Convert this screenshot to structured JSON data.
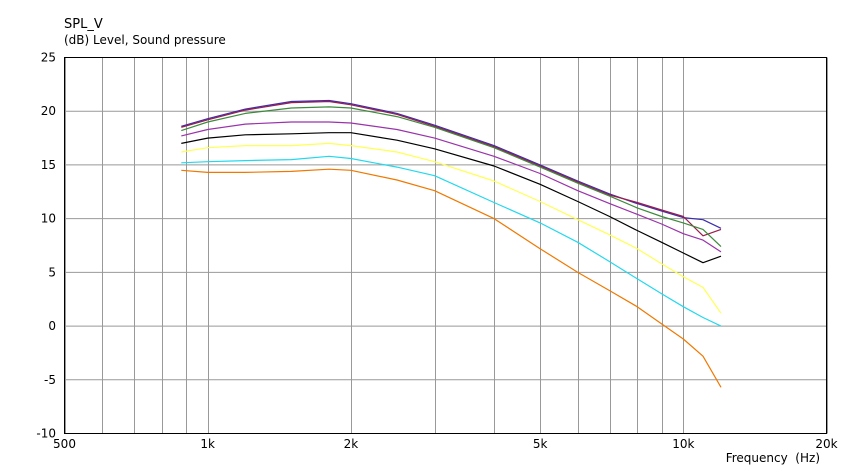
{
  "chart_data": {
    "type": "line",
    "title": "SPL_V",
    "subtitle": "(dB)  Level, Sound pressure",
    "xlabel": "Frequency  (Hz)",
    "ylabel": "",
    "xscale": "log",
    "xlim": [
      500,
      20000
    ],
    "ylim": [
      -10,
      25
    ],
    "grid": true,
    "legend": "none",
    "yticks": [
      25,
      20,
      15,
      10,
      5,
      0,
      -5,
      -10
    ],
    "xtick_labels": [
      {
        "value": 500,
        "label": "500"
      },
      {
        "value": 1000,
        "label": "1k"
      },
      {
        "value": 2000,
        "label": "2k"
      },
      {
        "value": 5000,
        "label": "5k"
      },
      {
        "value": 10000,
        "label": "10k"
      },
      {
        "value": 20000,
        "label": "20k"
      }
    ],
    "x_gridlines": [
      500,
      600,
      700,
      800,
      900,
      1000,
      2000,
      3000,
      4000,
      5000,
      6000,
      7000,
      8000,
      9000,
      10000,
      20000
    ],
    "x": [
      880,
      1000,
      1200,
      1500,
      1800,
      2000,
      2500,
      3000,
      4000,
      5000,
      6000,
      7000,
      8000,
      9000,
      10000,
      11000,
      12000
    ],
    "series": [
      {
        "color": "#3a2eb0",
        "values": [
          18.6,
          19.3,
          20.2,
          20.9,
          21.0,
          20.7,
          19.8,
          18.7,
          16.8,
          15.0,
          13.5,
          12.3,
          11.4,
          10.7,
          10.1,
          9.9,
          9.1
        ]
      },
      {
        "color": "#9b1b4a",
        "values": [
          18.5,
          19.2,
          20.1,
          20.8,
          20.9,
          20.6,
          19.7,
          18.6,
          16.7,
          14.9,
          13.4,
          12.2,
          11.5,
          10.8,
          10.2,
          8.4,
          9.0
        ]
      },
      {
        "color": "#3c8a3c",
        "values": [
          18.2,
          19.0,
          19.8,
          20.3,
          20.4,
          20.3,
          19.5,
          18.5,
          16.6,
          14.8,
          13.3,
          12.1,
          11.0,
          10.2,
          9.6,
          9.0,
          7.4
        ]
      },
      {
        "color": "#9933aa",
        "values": [
          17.7,
          18.3,
          18.8,
          19.0,
          19.0,
          18.9,
          18.3,
          17.5,
          15.8,
          14.2,
          12.6,
          11.4,
          10.4,
          9.5,
          8.6,
          8.0,
          6.9
        ]
      },
      {
        "color": "#000000",
        "values": [
          17.0,
          17.5,
          17.8,
          17.9,
          18.0,
          18.0,
          17.3,
          16.5,
          14.9,
          13.2,
          11.6,
          10.2,
          8.9,
          7.8,
          6.8,
          5.9,
          6.5
        ]
      },
      {
        "color": "#ffff55",
        "values": [
          16.2,
          16.6,
          16.8,
          16.8,
          17.0,
          16.8,
          16.2,
          15.3,
          13.5,
          11.6,
          9.9,
          8.5,
          7.2,
          5.8,
          4.6,
          3.6,
          1.2
        ]
      },
      {
        "color": "#22d8ee",
        "values": [
          15.2,
          15.3,
          15.4,
          15.5,
          15.8,
          15.6,
          14.8,
          14.0,
          11.5,
          9.6,
          7.8,
          6.0,
          4.4,
          3.0,
          1.8,
          0.8,
          0.0
        ]
      },
      {
        "color": "#f07800",
        "values": [
          14.5,
          14.3,
          14.3,
          14.4,
          14.6,
          14.5,
          13.6,
          12.6,
          10.0,
          7.2,
          5.0,
          3.3,
          1.8,
          0.2,
          -1.2,
          -2.8,
          -5.7
        ]
      }
    ]
  }
}
